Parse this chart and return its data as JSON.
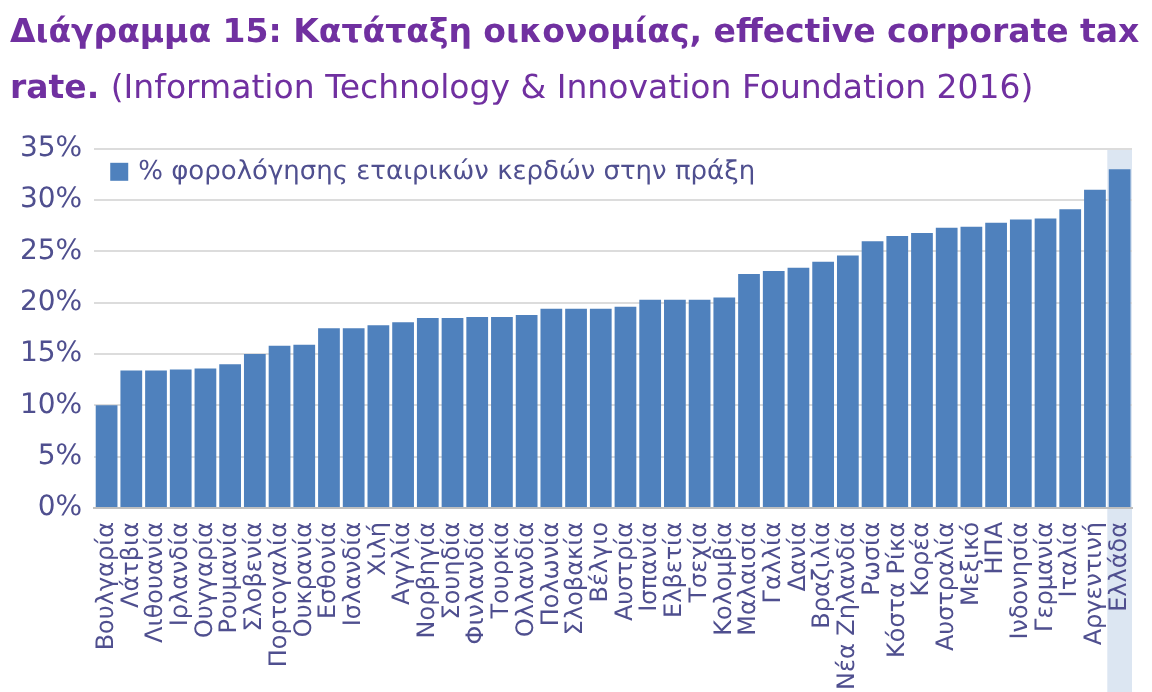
{
  "chart_data": {
    "type": "bar",
    "title": "Διάγραμμα 15: Κατάταξη οικονομίας, effective corporate tax rate.",
    "subtitle": "(Information Technology & Innovation Foundation 2016)",
    "categories": [
      "Βουλγαρία",
      "Λάτβια",
      "Λιθουανία",
      "Ιρλανδία",
      "Ουγγαρία",
      "Ρουμανία",
      "Σλοβενία",
      "Πορτογαλία",
      "Ουκρανία",
      "Εσθονία",
      "Ισλανδία",
      "Χιλή",
      "Αγγλία",
      "Νορβηγία",
      "Σουηδία",
      "Φινλανδία",
      "Τουρκία",
      "Ολλανδία",
      "Πολωνία",
      "Σλοβακία",
      "Βέλγιο",
      "Αυστρία",
      "Ισπανία",
      "Ελβετία",
      "Τσεχία",
      "Κολομβία",
      "Μαλαισία",
      "Γαλλία",
      "Δανία",
      "Βραζιλία",
      "Νέα Ζηλανδία",
      "Ρωσία",
      "Κόστα Ρίκα",
      "Κορέα",
      "Αυστραλία",
      "Μεξικό",
      "ΗΠΑ",
      "Ινδονησία",
      "Γερμανία",
      "Ιταλία",
      "Αργεντινή",
      "Ελλάδα"
    ],
    "series": [
      {
        "name": "% φορολόγησης εταιρικών κερδών στην πράξη",
        "color": "#4f81bd",
        "values": [
          10,
          13.4,
          13.4,
          13.5,
          13.6,
          14,
          15,
          15.8,
          15.9,
          17.5,
          17.5,
          17.8,
          18.1,
          18.5,
          18.5,
          18.6,
          18.6,
          18.8,
          19.4,
          19.4,
          19.4,
          19.6,
          20.3,
          20.3,
          20.3,
          20.5,
          22.8,
          23.1,
          23.4,
          24,
          24.6,
          26,
          26.5,
          26.8,
          27.3,
          27.4,
          27.8,
          28.1,
          28.2,
          29.1,
          31,
          33
        ]
      }
    ],
    "ylim": [
      0,
      35
    ],
    "yticks": [
      {
        "value": 0,
        "label": "0%"
      },
      {
        "value": 5,
        "label": "5%"
      },
      {
        "value": 10,
        "label": "10%"
      },
      {
        "value": 15,
        "label": "15%"
      },
      {
        "value": 20,
        "label": "20%"
      },
      {
        "value": 25,
        "label": "25%"
      },
      {
        "value": 30,
        "label": "30%"
      },
      {
        "value": 35,
        "label": "35%"
      }
    ],
    "bands": [
      {
        "axis": "x",
        "from": "Ελλάδα",
        "to": "Ελλάδα",
        "color": "#dce6f2"
      }
    ],
    "grid": "y",
    "legend": "top left"
  }
}
